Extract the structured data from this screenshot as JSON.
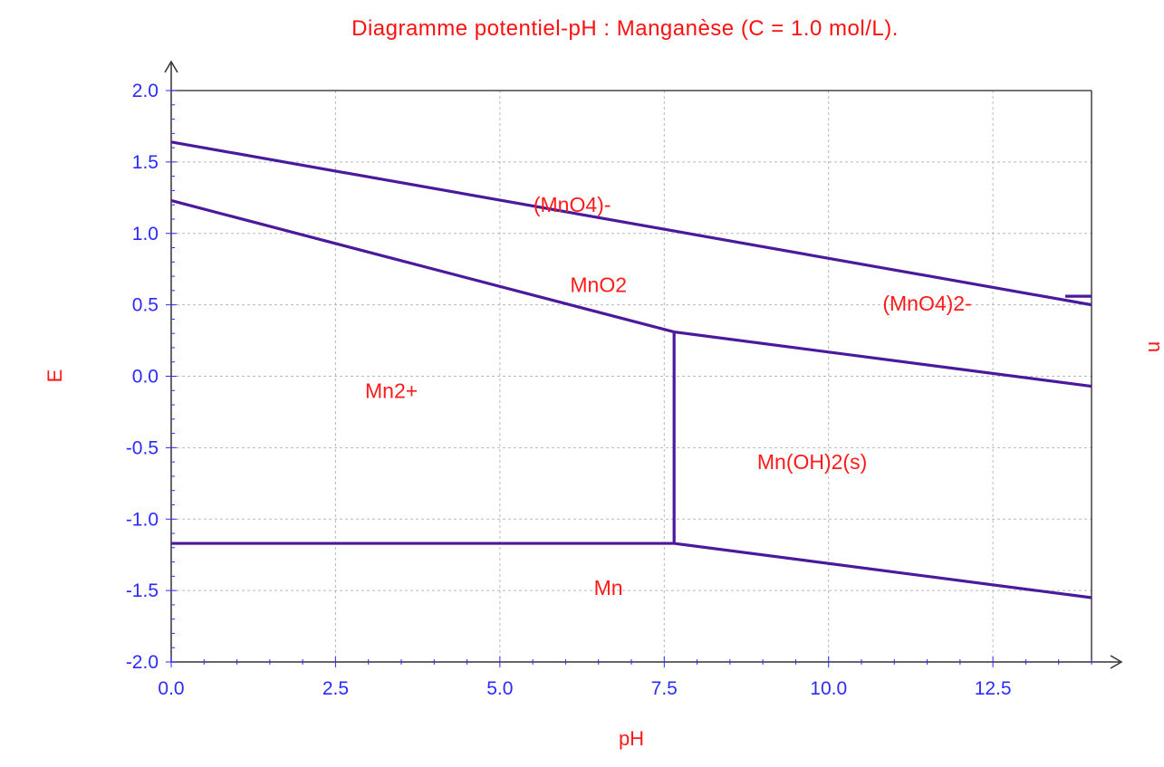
{
  "chart_data": {
    "type": "line",
    "title": "Diagramme potentiel-pH : Manganèse (C = 1.0 mol/L).",
    "xlabel": "pH",
    "ylabel": "E",
    "right_label": "u",
    "xlim": [
      0,
      14
    ],
    "ylim": [
      -2.0,
      2.0
    ],
    "x_ticks": [
      "0.0",
      "2.5",
      "5.0",
      "7.5",
      "10.0",
      "12.5"
    ],
    "x_tick_values": [
      0,
      2.5,
      5,
      7.5,
      10,
      12.5
    ],
    "y_ticks": [
      "2.0",
      "1.5",
      "1.0",
      "0.5",
      "0.0",
      "-0.5",
      "-1.0",
      "-1.5",
      "-2.0"
    ],
    "y_tick_values": [
      2.0,
      1.5,
      1.0,
      0.5,
      0.0,
      -0.5,
      -1.0,
      -1.5,
      -2.0
    ],
    "grid": true,
    "line_color": "#4b1a9c",
    "grid_color": "#b8b8b8",
    "segments": [
      {
        "x": [
          0,
          14
        ],
        "y": [
          1.64,
          0.5
        ]
      },
      {
        "x": [
          13.6,
          14
        ],
        "y": [
          0.56,
          0.56
        ]
      },
      {
        "x": [
          0,
          7.65
        ],
        "y": [
          1.23,
          0.31
        ]
      },
      {
        "x": [
          7.65,
          14
        ],
        "y": [
          0.31,
          -0.07
        ]
      },
      {
        "x": [
          7.65,
          7.65
        ],
        "y": [
          0.31,
          -1.17
        ]
      },
      {
        "x": [
          0,
          7.65
        ],
        "y": [
          -1.17,
          -1.17
        ]
      },
      {
        "x": [
          7.65,
          14
        ],
        "y": [
          -1.17,
          -1.55
        ]
      }
    ],
    "regions": [
      {
        "label": "(MnO4)-",
        "x": 6.1,
        "y": 1.2
      },
      {
        "label": "MnO2",
        "x": 6.5,
        "y": 0.64
      },
      {
        "label": "(MnO4)2-",
        "x": 11.5,
        "y": 0.51
      },
      {
        "label": "Mn2+",
        "x": 3.35,
        "y": -0.1
      },
      {
        "label": "Mn(OH)2(s)",
        "x": 9.75,
        "y": -0.6
      },
      {
        "label": "Mn",
        "x": 6.65,
        "y": -1.48
      }
    ]
  }
}
